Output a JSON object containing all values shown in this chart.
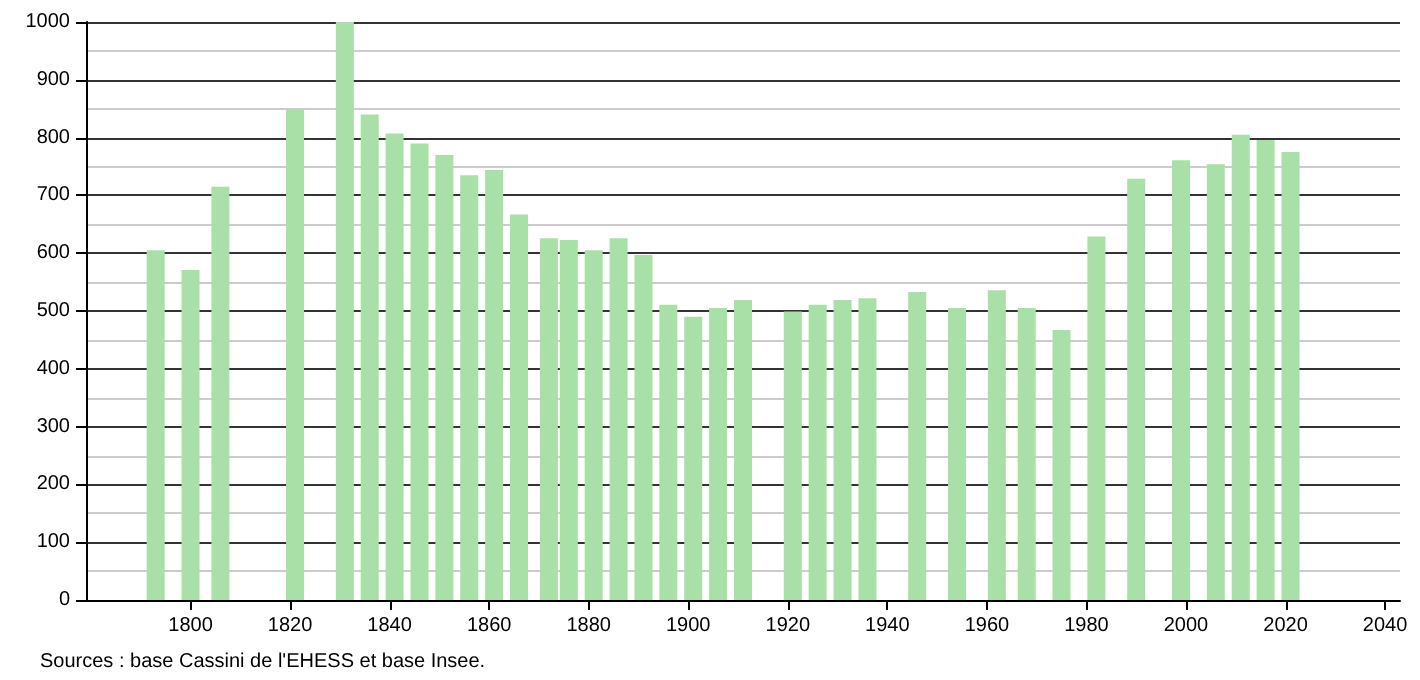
{
  "chart_data": {
    "type": "bar",
    "x": [
      1793,
      1800,
      1806,
      1821,
      1831,
      1836,
      1841,
      1846,
      1851,
      1856,
      1861,
      1866,
      1872,
      1876,
      1881,
      1886,
      1891,
      1896,
      1901,
      1906,
      1911,
      1921,
      1926,
      1931,
      1936,
      1946,
      1954,
      1962,
      1968,
      1975,
      1982,
      1990,
      1999,
      2006,
      2011,
      2016,
      2021
    ],
    "values": [
      605,
      571,
      715,
      848,
      1000,
      840,
      807,
      790,
      770,
      735,
      744,
      667,
      626,
      623,
      605,
      626,
      597,
      511,
      490,
      505,
      519,
      499,
      511,
      519,
      522,
      533,
      505,
      536,
      505,
      467,
      629,
      729,
      761,
      754,
      805,
      796,
      775
    ],
    "color": "#a8e0a8",
    "xlim": [
      1779,
      2043
    ],
    "xticks": [
      1800,
      1820,
      1840,
      1860,
      1880,
      1900,
      1920,
      1940,
      1960,
      1980,
      2000,
      2020,
      2040
    ],
    "ylim": [
      0,
      1000
    ],
    "yticks": [
      0,
      100,
      200,
      300,
      400,
      500,
      600,
      700,
      800,
      900,
      1000
    ],
    "grid": "y",
    "annotations": [
      "Sources : base Cassini de l'EHESS et base Insee."
    ]
  }
}
